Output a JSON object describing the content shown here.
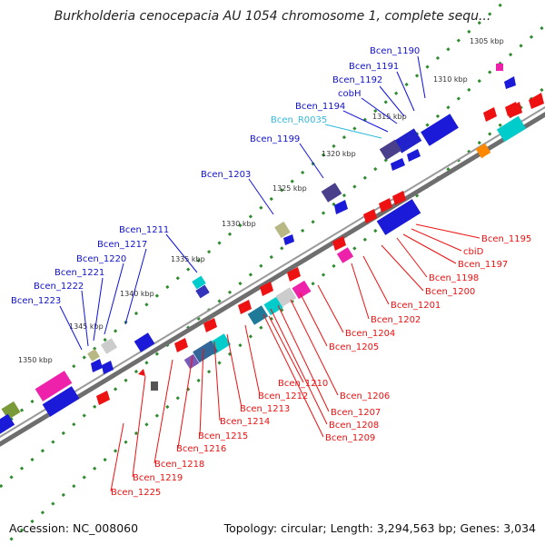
{
  "title": "Burkholderia cenocepacia AU 1054 chromosome 1, complete sequ...",
  "accession_line": "Accession: NC_008060",
  "topology_line": "Topology: circular; Length: 3,294,563 bp; Genes: 3,034",
  "colors": {
    "backbone": "#7a7a7a",
    "dots": "#2e8b2e",
    "cds": "#ee1111",
    "cds_alt": "#1111dd",
    "rna_label": "#33bbdd",
    "highlight": "#ff1493",
    "tick_text": "#333333"
  },
  "kbp_ticks": [
    "1305 kbp",
    "1310 kbp",
    "1315 kbp",
    "1320 kbp",
    "1325 kbp",
    "1330 kbp",
    "1335 kbp",
    "1340 kbp",
    "1345 kbp",
    "1350 kbp"
  ],
  "upper_labels": [
    "Bcen_1190",
    "Bcen_1191",
    "Bcen_1192",
    "cobH",
    "Bcen_1194",
    "Bcen_R0035",
    "Bcen_1199",
    "Bcen_1203",
    "Bcen_1211",
    "Bcen_1217",
    "Bcen_1220",
    "Bcen_1221",
    "Bcen_1222",
    "Bcen_1223"
  ],
  "lower_labels": [
    "Bcen_1195",
    "cbiD",
    "Bcen_1197",
    "Bcen_1198",
    "Bcen_1200",
    "Bcen_1201",
    "Bcen_1202",
    "Bcen_1204",
    "Bcen_1205",
    "Bcen_1206",
    "Bcen_1207",
    "Bcen_1208",
    "Bcen_1209",
    "Bcen_1210",
    "Bcen_1212",
    "Bcen_1213",
    "Bcen_1214",
    "Bcen_1215",
    "Bcen_1216",
    "Bcen_1218",
    "Bcen_1219",
    "Bcen_1225"
  ]
}
